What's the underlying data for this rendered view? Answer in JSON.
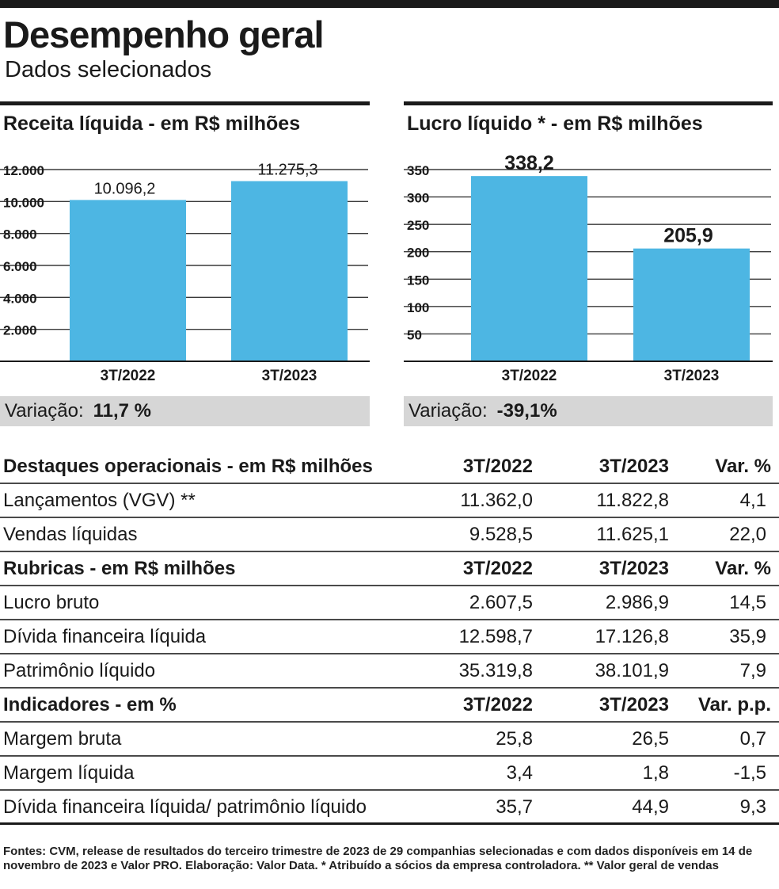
{
  "title": "Desempenho geral",
  "subtitle": "Dados selecionados",
  "colors": {
    "bar": "#4db6e3",
    "grid": "#3a3a3a",
    "variation_bg": "#d6d6d6"
  },
  "chart_data": [
    {
      "type": "bar",
      "title": "Receita líquida - em R$ milhões",
      "categories": [
        "3T/2022",
        "3T/2023"
      ],
      "values": [
        10096.2,
        11275.3
      ],
      "value_labels": [
        "10.096,2",
        "11.275,3"
      ],
      "yticks": [
        2000,
        4000,
        6000,
        8000,
        10000,
        12000
      ],
      "ytick_labels": [
        "2.000",
        "4.000",
        "6.000",
        "8.000",
        "10.000",
        "12.000"
      ],
      "ylim": [
        0,
        12000
      ],
      "grid": true
    },
    {
      "type": "bar",
      "title": "Lucro líquido * - em R$ milhões",
      "categories": [
        "3T/2022",
        "3T/2023"
      ],
      "values": [
        338.2,
        205.9
      ],
      "value_labels": [
        "338,2",
        "205,9"
      ],
      "yticks": [
        50,
        100,
        150,
        200,
        250,
        300,
        350
      ],
      "ytick_labels": [
        "50",
        "100",
        "150",
        "200",
        "250",
        "300",
        "350"
      ],
      "ylim": [
        0,
        350
      ],
      "grid": true
    }
  ],
  "variation": {
    "label": "Variação:",
    "left_value": "11,7 %",
    "right_value": "-39,1%"
  },
  "table": {
    "rows": [
      {
        "header": true,
        "cells": [
          "Destaques operacionais - em R$ milhões",
          "3T/2022",
          "3T/2023",
          "Var. %"
        ]
      },
      {
        "header": false,
        "cells": [
          "Lançamentos (VGV) **",
          "11.362,0",
          "11.822,8",
          "4,1"
        ]
      },
      {
        "header": false,
        "cells": [
          "Vendas líquidas",
          "9.528,5",
          "11.625,1",
          "22,0"
        ]
      },
      {
        "header": true,
        "cells": [
          "Rubricas - em R$ milhões",
          "3T/2022",
          "3T/2023",
          "Var. %"
        ]
      },
      {
        "header": false,
        "cells": [
          "Lucro bruto",
          "2.607,5",
          "2.986,9",
          "14,5"
        ]
      },
      {
        "header": false,
        "cells": [
          "Dívida financeira líquida",
          "12.598,7",
          "17.126,8",
          "35,9"
        ]
      },
      {
        "header": false,
        "cells": [
          "Patrimônio líquido",
          "35.319,8",
          "38.101,9",
          "7,9"
        ]
      },
      {
        "header": true,
        "cells": [
          "Indicadores - em %",
          "3T/2022",
          "3T/2023",
          "Var. p.p."
        ]
      },
      {
        "header": false,
        "cells": [
          "Margem bruta",
          "25,8",
          "26,5",
          "0,7"
        ]
      },
      {
        "header": false,
        "cells": [
          "Margem líquida",
          "3,4",
          "1,8",
          "-1,5"
        ]
      },
      {
        "header": false,
        "cells": [
          "Dívida financeira líquida/ patrimônio líquido",
          "35,7",
          "44,9",
          "9,3"
        ]
      }
    ]
  },
  "footnote": "Fontes: CVM, release de resultados do terceiro trimestre de 2023 de 29 companhias selecionadas e com dados disponíveis em 14 de novembro de 2023 e Valor PRO. Elaboração: Valor Data. * Atribuído a sócios da empresa controladora. ** Valor geral de vendas"
}
